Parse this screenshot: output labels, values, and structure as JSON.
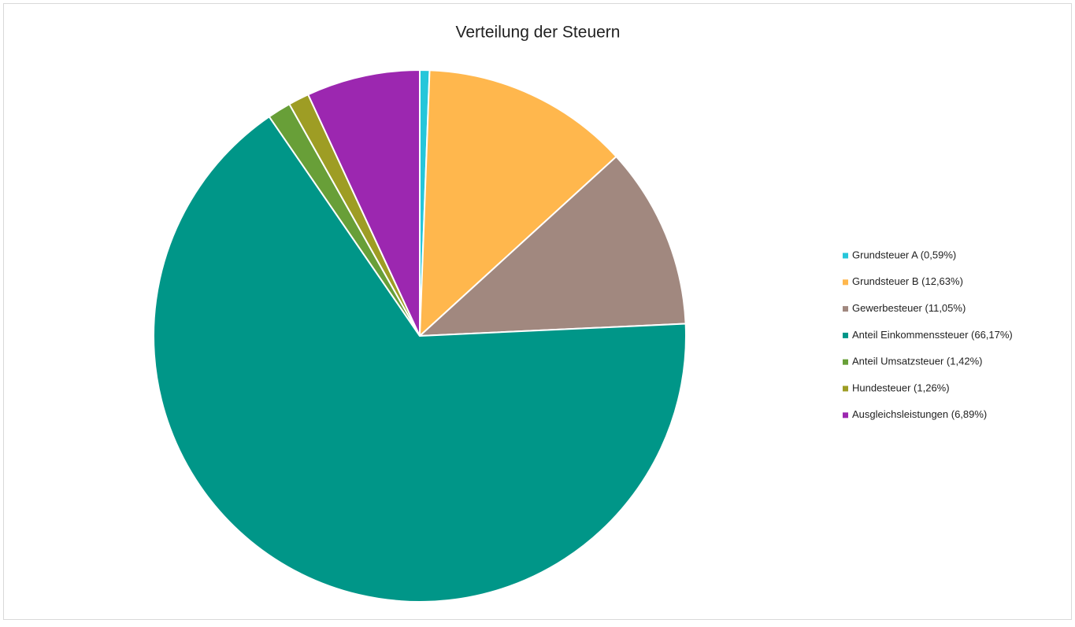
{
  "chart_data": {
    "type": "pie",
    "title": "Verteilung der Steuern",
    "categories": [
      "Grundsteuer A (0,59%)",
      "Grundsteuer B (12,63%)",
      "Gewerbesteuer (11,05%)",
      "Anteil Einkommenssteuer (66,17%)",
      "Anteil Umsatzsteuer (1,42%)",
      "Hundesteuer (1,26%)",
      "Ausgleichsleistungen (6,89%)"
    ],
    "values": [
      0.59,
      12.63,
      11.05,
      66.17,
      1.42,
      1.26,
      6.89
    ],
    "colors": [
      "#26c6da",
      "#ffb74d",
      "#a1887f",
      "#009688",
      "#689f38",
      "#9e9d24",
      "#9c27b0"
    ],
    "legend": "right"
  }
}
